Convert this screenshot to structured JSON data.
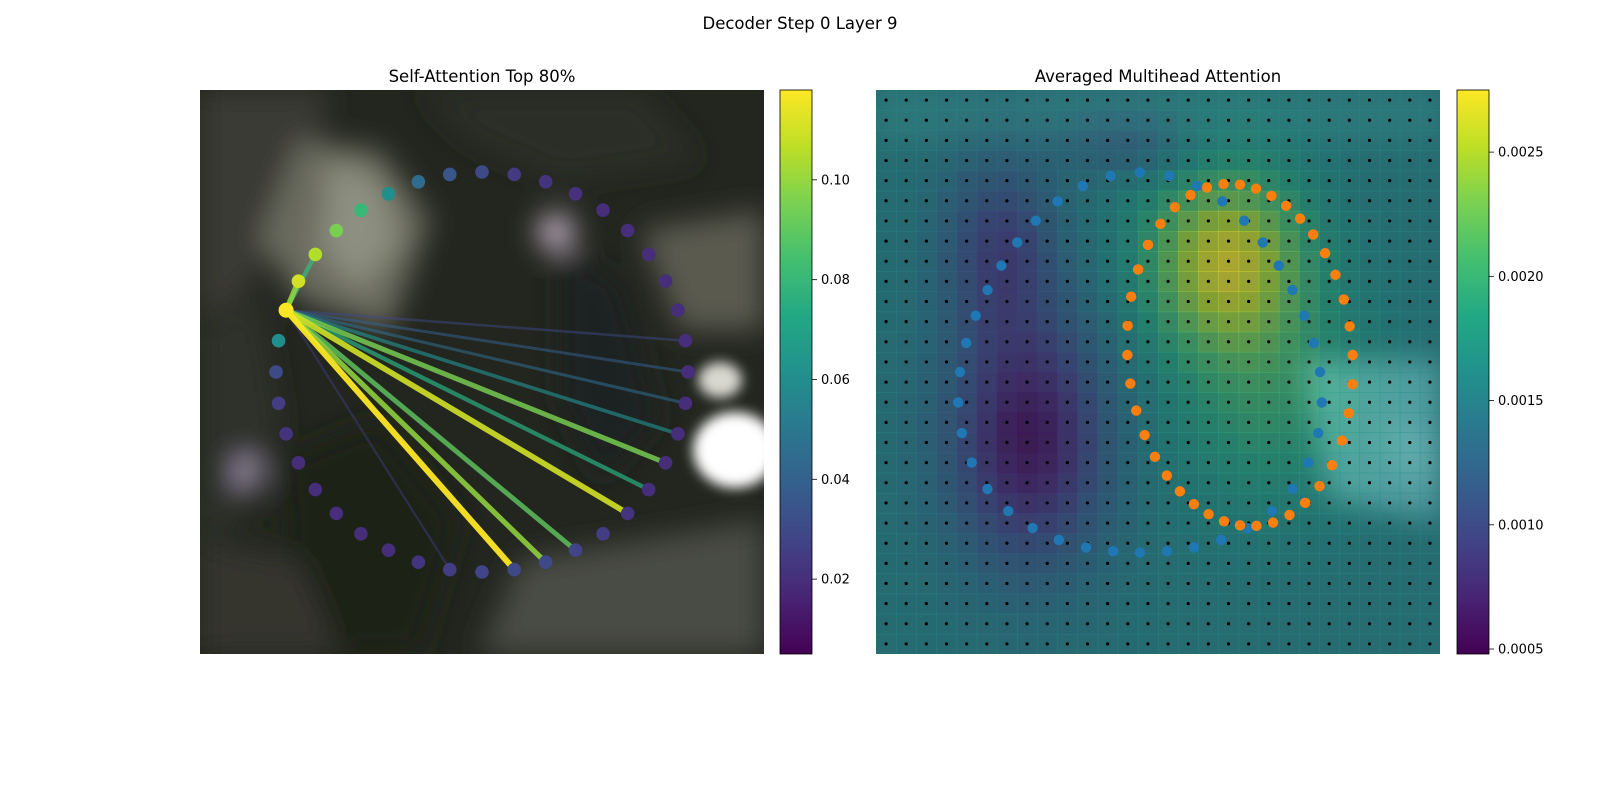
{
  "figure": {
    "title": "Decoder Step 0 Layer 9"
  },
  "chart_data": [
    {
      "type": "scatter",
      "title": "Self-Attention Top 80%",
      "description_kind": "ring of 40 token points over a blurred background image; colored lines show attention from the query token",
      "ring": {
        "center": [
          0,
          0
        ],
        "points": 40,
        "query_index": 27
      },
      "point_attention": [
        0.03,
        0.03,
        0.028,
        0.025,
        0.022,
        0.02,
        0.02,
        0.02,
        0.02,
        0.02,
        0.02,
        0.02,
        0.02,
        0.02,
        0.02,
        0.02,
        0.021,
        0.022,
        0.024,
        0.03,
        0.035,
        0.045,
        0.06,
        0.08,
        0.095,
        0.105,
        0.11,
        0.118,
        0.06,
        0.03,
        0.025,
        0.022,
        0.02,
        0.02,
        0.02,
        0.02,
        0.02,
        0.022,
        0.025,
        0.028
      ],
      "attention_lines": [
        {
          "target": 0,
          "weight": 0.118
        },
        {
          "target": 1,
          "weight": 0.1
        },
        {
          "target": 2,
          "weight": 0.09
        },
        {
          "target": 4,
          "weight": 0.11
        },
        {
          "target": 5,
          "weight": 0.075
        },
        {
          "target": 6,
          "weight": 0.095
        },
        {
          "target": 7,
          "weight": 0.06
        },
        {
          "target": 8,
          "weight": 0.045
        },
        {
          "target": 9,
          "weight": 0.04
        },
        {
          "target": 10,
          "weight": 0.03
        },
        {
          "target": 38,
          "weight": 0.025
        },
        {
          "target": 26,
          "weight": 0.1
        },
        {
          "target": 25,
          "weight": 0.08
        }
      ],
      "colorbar": {
        "ticks": [
          0.02,
          0.04,
          0.06,
          0.08,
          0.1
        ],
        "min": 0.005,
        "max": 0.118,
        "colormap": "viridis"
      }
    },
    {
      "type": "heatmap",
      "title": "Averaged Multihead Attention",
      "grid": {
        "rows": 28,
        "cols": 28
      },
      "series": [
        {
          "color": "#1f77b4",
          "kind": "predicted contour"
        },
        {
          "color": "#ff7f0e",
          "kind": "reference contour"
        }
      ],
      "colorbar": {
        "ticks": [
          0.0005,
          0.001,
          0.0015,
          0.002,
          0.0025
        ],
        "tick_labels": [
          "0.0005",
          "0.0010",
          "0.0015",
          "0.0020",
          "0.0025"
        ],
        "min": 0.00048,
        "max": 0.00275,
        "colormap": "viridis"
      }
    }
  ],
  "colors": {
    "blue_series": "#1f77b4",
    "orange_series": "#ff7f0e"
  }
}
